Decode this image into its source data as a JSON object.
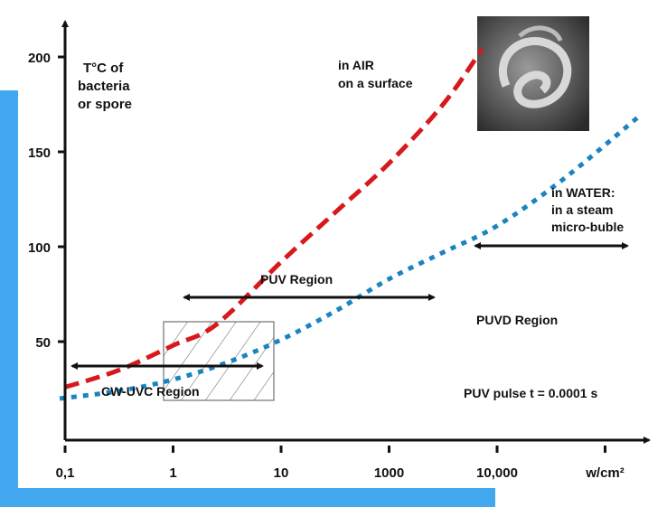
{
  "chart_data": {
    "type": "line",
    "title": "",
    "ylabel": [
      "T°C of",
      "bacteria",
      "or spore"
    ],
    "xlabel": "w/cm²",
    "x_tick_labels": [
      "0,1",
      "1",
      "10",
      "1000",
      "10,000",
      "w/cm²"
    ],
    "y_ticks": [
      50,
      100,
      150,
      200
    ],
    "y_tick_labels": [
      "50",
      "100",
      "150",
      "200"
    ],
    "ylim": [
      0,
      215
    ],
    "x_index_range": [
      0,
      5.4
    ],
    "series": [
      {
        "name": "in AIR on a surface",
        "style": "dashed",
        "color": "#d7191c",
        "x_index": [
          0,
          0.5,
          1,
          1.4,
          2,
          2.5,
          3,
          3.5,
          3.86
        ],
        "values": [
          26,
          35,
          48,
          59,
          92,
          118,
          144,
          175,
          204
        ]
      },
      {
        "name": "in WATER: in a steam micro-buble",
        "style": "dotted",
        "color": "#1a84c0",
        "x_index": [
          -0.05,
          0.5,
          1,
          1.5,
          2,
          2.5,
          3,
          3.5,
          4,
          4.6,
          5.3
        ],
        "values": [
          20,
          24,
          30,
          39,
          51,
          66,
          83,
          97,
          111,
          135,
          168
        ]
      }
    ],
    "annotations": {
      "air_label": [
        "in AIR",
        "on a surface"
      ],
      "water_label": [
        "in WATER:",
        "in a steam",
        "micro-buble"
      ],
      "puv_region": "PUV Region",
      "puvd_region": "PUVD Region",
      "cwuvc_region": "CW-UVC Region",
      "pulse_note": "PUV pulse t = 0.0001 s"
    },
    "regions": [
      {
        "name": "CW-UVC Region",
        "x_index": [
          0,
          1.9
        ]
      },
      {
        "name": "PUV Region",
        "x_index": [
          1.05,
          3.45
        ]
      },
      {
        "name": "PUVD Region",
        "x_index": [
          3.8,
          5.3
        ]
      }
    ],
    "hatched_box": {
      "x_index": [
        0.93,
        1.95
      ],
      "y": [
        19,
        61
      ]
    },
    "grid": false
  }
}
